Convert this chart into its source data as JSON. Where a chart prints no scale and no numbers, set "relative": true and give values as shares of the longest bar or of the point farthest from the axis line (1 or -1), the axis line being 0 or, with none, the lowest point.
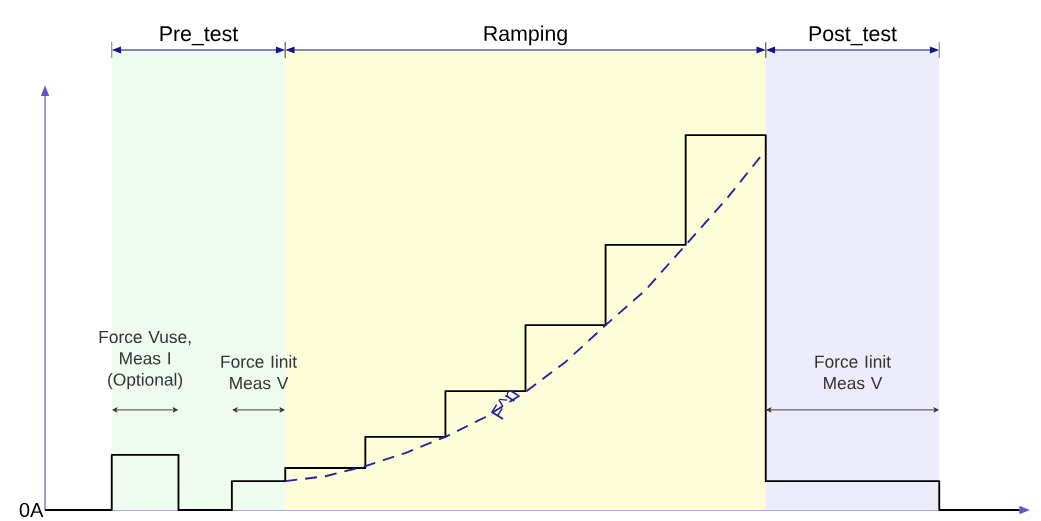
{
  "chart_data": {
    "type": "step",
    "relative": true,
    "categories": [
      null,
      null,
      null,
      null,
      null,
      null,
      null,
      null,
      null,
      null,
      null,
      null,
      null,
      null,
      null,
      null,
      null,
      null,
      null,
      null,
      null,
      null,
      null,
      null,
      null,
      null,
      null,
      null,
      null,
      null,
      null,
      null,
      null,
      null,
      null,
      null,
      null,
      null,
      null,
      null,
      null,
      null,
      null,
      null,
      null,
      null,
      null,
      null,
      null,
      null,
      null,
      null,
      null,
      null,
      null,
      null,
      null,
      null,
      null,
      null,
      null,
      null,
      null,
      null,
      null,
      null,
      null,
      null,
      null,
      null,
      null,
      null,
      null,
      null
    ],
    "series": [
      {
        "color": "#000000",
        "values": [
          0,
          0,
          0,
          0,
          0,
          0.147,
          0.147,
          0.147,
          0.147,
          0.147,
          0,
          0,
          0,
          0,
          0.077,
          0.077,
          0.077,
          0.077,
          0.112,
          0.112,
          0.112,
          0.112,
          0.112,
          0.112,
          0.195,
          0.195,
          0.195,
          0.195,
          0.195,
          0.195,
          0.317,
          0.317,
          0.317,
          0.317,
          0.317,
          0.317,
          0.493,
          0.493,
          0.493,
          0.493,
          0.493,
          0.493,
          0.707,
          0.707,
          0.707,
          0.707,
          0.707,
          0.707,
          1,
          1,
          1,
          1,
          1,
          1,
          0.077,
          0.077,
          0.077,
          0.077,
          0.077,
          0.077,
          0.077,
          0.077,
          0.077,
          0.077,
          0.077,
          0.077,
          0.077,
          0,
          0,
          0,
          0,
          0,
          0,
          0
        ]
      },
      {
        "type": "line",
        "name": "F^n",
        "color": "#2323a0",
        "line_style": "dashed",
        "values": [
          null,
          null,
          null,
          null,
          null,
          null,
          null,
          null,
          null,
          null,
          null,
          null,
          null,
          null,
          null,
          null,
          null,
          null,
          0.077,
          null,
          null,
          0.09,
          null,
          null,
          0.117,
          null,
          null,
          0.152,
          null,
          null,
          0.195,
          null,
          null,
          0.248,
          null,
          null,
          0.315,
          null,
          null,
          0.395,
          null,
          null,
          0.493,
          null,
          null,
          0.587,
          null,
          null,
          0.707,
          null,
          null,
          0.827,
          null,
          null,
          0.96,
          null,
          null,
          null,
          null,
          null,
          null,
          null,
          null,
          null,
          null,
          null,
          null,
          null,
          null,
          null,
          null,
          null,
          null,
          null
        ]
      }
    ],
    "annotations": [
      "0A",
      "Pre_test",
      "Ramping",
      "Post_test",
      "Force Vuse, Meas I (Optional)",
      "Force Iinit Meas V",
      "Force Iinit Meas V"
    ]
  }
}
